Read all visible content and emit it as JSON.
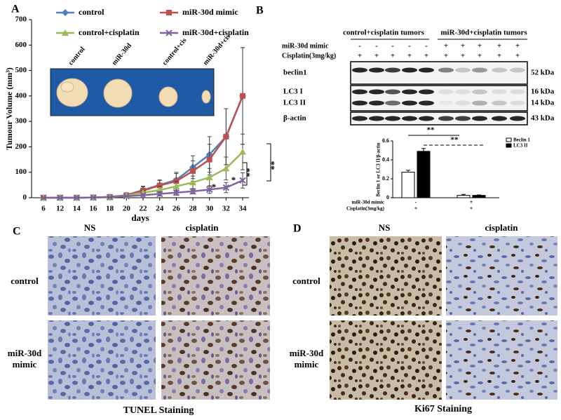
{
  "chart_data": [
    {
      "type": "line",
      "x_label": "days",
      "y_label": "Tumour Volume (mm³)",
      "categories": [
        "6",
        "12",
        "14",
        "16",
        "18",
        "20",
        "22",
        "24",
        "26",
        "28",
        "30",
        "32",
        "34"
      ],
      "ylim": [
        0,
        700
      ],
      "yticks": [
        0,
        100,
        200,
        300,
        400,
        500,
        600,
        700
      ],
      "series": [
        {
          "name": "control",
          "color": "#4f81bd",
          "marker": "diamond",
          "values": [
            0,
            0,
            0,
            1,
            3,
            10,
            30,
            50,
            70,
            120,
            170,
            240,
            400
          ],
          "errors": [
            0,
            0,
            0,
            0,
            1,
            5,
            15,
            20,
            30,
            45,
            70,
            110,
            190
          ]
        },
        {
          "name": "miR-30d mimic",
          "color": "#c0504d",
          "marker": "square",
          "values": [
            0,
            0,
            0,
            1,
            3,
            10,
            28,
            48,
            65,
            105,
            150,
            240,
            400
          ],
          "errors": [
            0,
            0,
            0,
            0,
            1,
            5,
            15,
            20,
            30,
            40,
            60,
            110,
            190
          ]
        },
        {
          "name": "control+cisplatin",
          "color": "#9bbb59",
          "marker": "triangle",
          "values": [
            0,
            0,
            0,
            1,
            2,
            8,
            20,
            30,
            45,
            60,
            80,
            115,
            180
          ],
          "errors": [
            0,
            0,
            0,
            0,
            1,
            4,
            10,
            15,
            20,
            25,
            35,
            45,
            70
          ]
        },
        {
          "name": "miR-30d+cisplatin",
          "color": "#8064a2",
          "marker": "x",
          "values": [
            0,
            0,
            0,
            1,
            2,
            6,
            10,
            15,
            20,
            25,
            32,
            40,
            68
          ],
          "errors": [
            0,
            0,
            0,
            0,
            1,
            3,
            5,
            8,
            10,
            10,
            15,
            20,
            30
          ]
        }
      ],
      "annotations": [
        "*",
        "*",
        "**",
        "**"
      ]
    },
    {
      "type": "bar",
      "y_label": "Beclin 1 or LC3 II/β-actin",
      "categories": [
        null,
        null
      ],
      "conditions": [
        {
          "label": "miR-30d mimic",
          "values": [
            "-",
            "+"
          ]
        },
        {
          "label": "Cisplatin(3mg/kg)",
          "values": [
            "+",
            "+"
          ]
        }
      ],
      "ylim": [
        0,
        0.6
      ],
      "yticks": [
        0,
        0.2,
        0.4,
        0.6
      ],
      "series": [
        {
          "name": "Beclin 1",
          "color": "#ffffff",
          "values": [
            0.27,
            0.025
          ],
          "errors": [
            0.02,
            0.01
          ]
        },
        {
          "name": "LC3 II",
          "color": "#000000",
          "values": [
            0.49,
            0.025
          ],
          "errors": [
            0.03,
            0.005
          ]
        }
      ],
      "legend": "upper right",
      "annotations": [
        "**",
        "**"
      ]
    }
  ],
  "panels": [
    "A",
    "B",
    "C",
    "D"
  ],
  "inset": {
    "labels": [
      "control",
      "miR-30d",
      "control+cis",
      "miR-30d+cis"
    ]
  },
  "blot": {
    "groups": [
      "control+cisplatin tumors",
      "miR-30d+cisplatin tumors"
    ],
    "rows": [
      {
        "label": "miR-30d mimic",
        "lanes": [
          "-",
          "-",
          "-",
          "-",
          "-",
          "+",
          "+",
          "+",
          "+",
          "+"
        ]
      },
      {
        "label": "Cisplatin(3mg/kg)",
        "lanes": [
          "+",
          "+",
          "+",
          "+",
          "+",
          "+",
          "+",
          "+",
          "+",
          "+"
        ]
      }
    ],
    "bands": [
      {
        "label": "beclin1",
        "size": "52 kDa"
      },
      {
        "label": "LC3 I",
        "size": "16 kDa"
      },
      {
        "label": "LC3 II",
        "size": "14 kDa"
      },
      {
        "label": "β-actin",
        "size": "43 kDa"
      }
    ]
  },
  "staining": [
    {
      "title": "TUNEL Staining",
      "columns": [
        "NS",
        "cisplatin"
      ],
      "rows": [
        "control",
        "miR-30d mimic"
      ]
    },
    {
      "title": "Ki67 Staining",
      "columns": [
        "NS",
        "cisplatin"
      ],
      "rows": [
        "control",
        "miR-30d mimic"
      ]
    }
  ]
}
